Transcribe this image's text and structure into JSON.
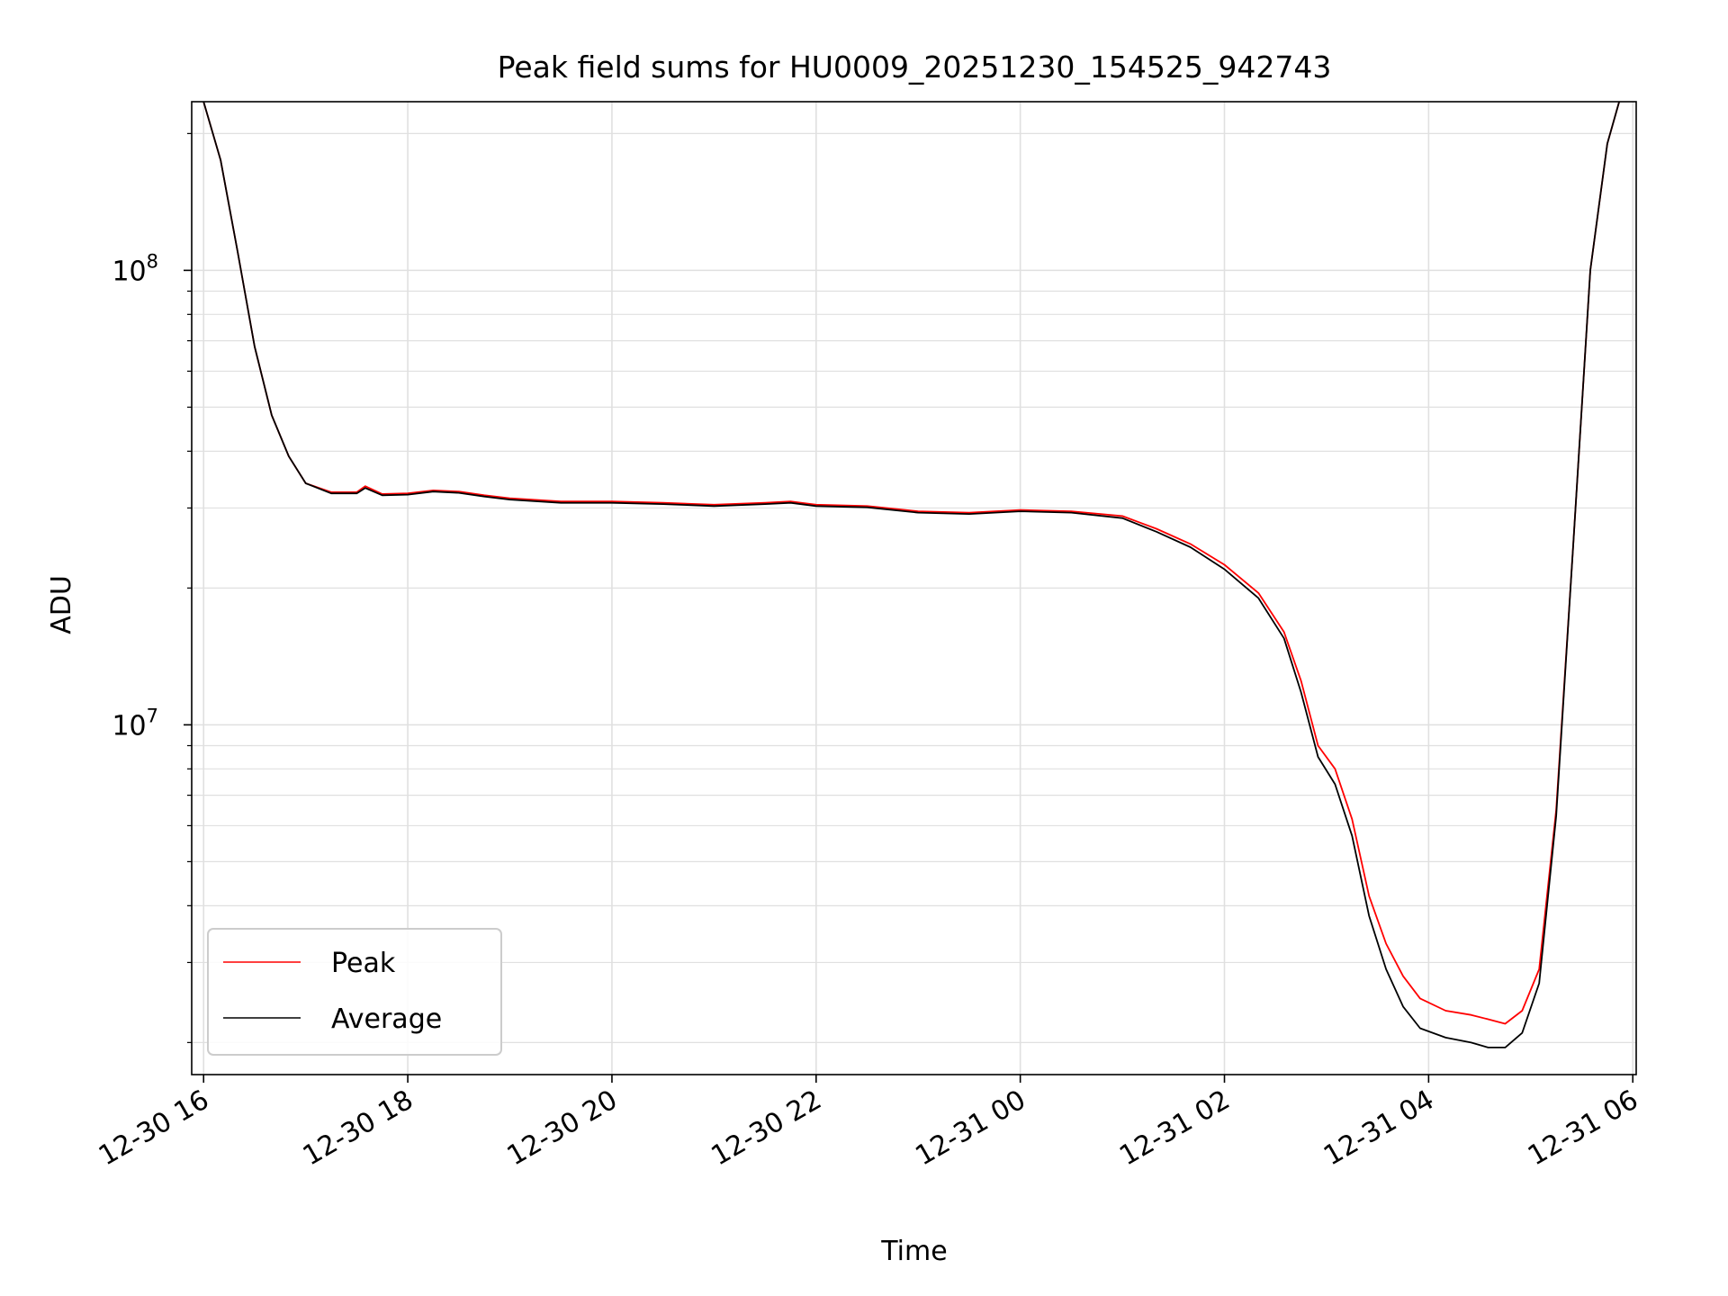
{
  "chart_data": {
    "type": "line",
    "title": "Peak field sums for HU0009_20251230_154525_942743",
    "xlabel": "Time",
    "ylabel": "ADU",
    "y_scale": "log",
    "grid": "on (major and minor)",
    "legend_position": "lower-left",
    "xlim": [
      "2025-12-30 15:53",
      "2025-12-31 06:02"
    ],
    "ylim": [
      1700000,
      235000000
    ],
    "x_ticks": [
      "12-30 16",
      "12-30 18",
      "12-30 20",
      "12-30 22",
      "12-31 00",
      "12-31 02",
      "12-31 04",
      "12-31 06"
    ],
    "y_ticks": [
      {
        "mantissa": "10",
        "exponent": "7"
      },
      {
        "mantissa": "10",
        "exponent": "8"
      }
    ],
    "colors": {
      "peak": "#ff0000",
      "average": "#000000",
      "grid": "#e0e0e0",
      "legend_border": "#cccccc"
    },
    "x": [
      "2025-12-30 16:00",
      "2025-12-30 16:10",
      "2025-12-30 16:20",
      "2025-12-30 16:30",
      "2025-12-30 16:40",
      "2025-12-30 16:50",
      "2025-12-30 17:00",
      "2025-12-30 17:15",
      "2025-12-30 17:30",
      "2025-12-30 17:35",
      "2025-12-30 17:45",
      "2025-12-30 18:00",
      "2025-12-30 18:15",
      "2025-12-30 18:30",
      "2025-12-30 18:45",
      "2025-12-30 19:00",
      "2025-12-30 19:30",
      "2025-12-30 20:00",
      "2025-12-30 20:30",
      "2025-12-30 21:00",
      "2025-12-30 21:30",
      "2025-12-30 21:45",
      "2025-12-30 22:00",
      "2025-12-30 22:30",
      "2025-12-30 23:00",
      "2025-12-30 23:30",
      "2025-12-31 00:00",
      "2025-12-31 00:30",
      "2025-12-31 01:00",
      "2025-12-31 01:20",
      "2025-12-31 01:40",
      "2025-12-31 02:00",
      "2025-12-31 02:20",
      "2025-12-31 02:35",
      "2025-12-31 02:45",
      "2025-12-31 02:55",
      "2025-12-31 03:05",
      "2025-12-31 03:15",
      "2025-12-31 03:25",
      "2025-12-31 03:35",
      "2025-12-31 03:45",
      "2025-12-31 03:55",
      "2025-12-31 04:10",
      "2025-12-31 04:25",
      "2025-12-31 04:35",
      "2025-12-31 04:45",
      "2025-12-31 04:55",
      "2025-12-31 05:05",
      "2025-12-31 05:15",
      "2025-12-31 05:25",
      "2025-12-31 05:35",
      "2025-12-31 05:45",
      "2025-12-31 05:52"
    ],
    "series": [
      {
        "name": "Peak",
        "values": [
          235000000,
          175000000,
          110000000,
          68000000,
          48000000,
          39000000,
          34000000,
          32500000,
          32500000,
          33500000,
          32200000,
          32300000,
          32800000,
          32600000,
          32000000,
          31500000,
          31000000,
          31000000,
          30800000,
          30500000,
          30800000,
          31000000,
          30500000,
          30300000,
          29500000,
          29300000,
          29700000,
          29500000,
          28800000,
          27000000,
          25000000,
          22500000,
          19500000,
          16000000,
          12500000,
          9000000,
          8000000,
          6200000,
          4200000,
          3300000,
          2800000,
          2500000,
          2350000,
          2300000,
          2250000,
          2200000,
          2350000,
          2900000,
          6500000,
          25000000,
          100000000,
          190000000,
          235000000
        ]
      },
      {
        "name": "Average",
        "values": [
          235000000,
          175000000,
          110000000,
          68000000,
          48000000,
          39000000,
          34000000,
          32300000,
          32300000,
          33200000,
          32000000,
          32100000,
          32600000,
          32400000,
          31800000,
          31300000,
          30800000,
          30800000,
          30600000,
          30300000,
          30600000,
          30800000,
          30300000,
          30100000,
          29300000,
          29100000,
          29500000,
          29300000,
          28500000,
          26600000,
          24600000,
          22000000,
          19000000,
          15500000,
          11800000,
          8500000,
          7400000,
          5700000,
          3800000,
          2900000,
          2400000,
          2150000,
          2050000,
          2000000,
          1950000,
          1950000,
          2100000,
          2700000,
          6300000,
          25000000,
          100000000,
          190000000,
          235000000
        ]
      }
    ]
  }
}
